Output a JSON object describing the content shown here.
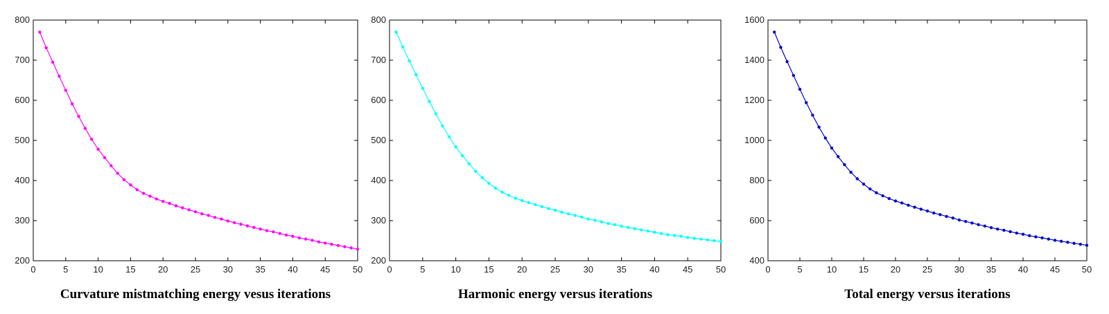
{
  "chart_data": [
    {
      "type": "line",
      "title": "Curvature mistmatching energy vesus iterations",
      "color": "#ff00ff",
      "xlim": [
        0,
        50
      ],
      "ylim": [
        200,
        800
      ],
      "xticks": [
        0,
        5,
        10,
        15,
        20,
        25,
        30,
        35,
        40,
        45,
        50
      ],
      "yticks": [
        200,
        300,
        400,
        500,
        600,
        700,
        800
      ],
      "x": [
        1,
        2,
        3,
        4,
        5,
        6,
        7,
        8,
        9,
        10,
        11,
        12,
        13,
        14,
        15,
        16,
        17,
        18,
        19,
        20,
        21,
        22,
        23,
        24,
        25,
        26,
        27,
        28,
        29,
        30,
        31,
        32,
        33,
        34,
        35,
        36,
        37,
        38,
        39,
        40,
        41,
        42,
        43,
        44,
        45,
        46,
        47,
        48,
        49,
        50
      ],
      "y": [
        770,
        731,
        695,
        660,
        625,
        591,
        560,
        530,
        503,
        478,
        457,
        437,
        418,
        402,
        389,
        377,
        368,
        361,
        354,
        348,
        343,
        337,
        332,
        327,
        322,
        317,
        313,
        308,
        304,
        299,
        295,
        291,
        287,
        283,
        279,
        275,
        272,
        268,
        264,
        261,
        257,
        254,
        251,
        247,
        244,
        241,
        238,
        235,
        232,
        229
      ]
    },
    {
      "type": "line",
      "title": "Harmonic energy versus iterations",
      "color": "#00ffff",
      "xlim": [
        0,
        50
      ],
      "ylim": [
        200,
        800
      ],
      "xticks": [
        0,
        5,
        10,
        15,
        20,
        25,
        30,
        35,
        40,
        45,
        50
      ],
      "yticks": [
        200,
        300,
        400,
        500,
        600,
        700,
        800
      ],
      "x": [
        1,
        2,
        3,
        4,
        5,
        6,
        7,
        8,
        9,
        10,
        11,
        12,
        13,
        14,
        15,
        16,
        17,
        18,
        19,
        20,
        21,
        22,
        23,
        24,
        25,
        26,
        27,
        28,
        29,
        30,
        31,
        32,
        33,
        34,
        35,
        36,
        37,
        38,
        39,
        40,
        41,
        42,
        43,
        44,
        45,
        46,
        47,
        48,
        49,
        50
      ],
      "y": [
        770,
        733,
        698,
        664,
        630,
        597,
        566,
        536,
        509,
        484,
        462,
        442,
        423,
        407,
        393,
        381,
        371,
        363,
        356,
        350,
        345,
        340,
        335,
        330,
        326,
        321,
        317,
        313,
        309,
        304,
        301,
        297,
        293,
        290,
        286,
        283,
        280,
        277,
        274,
        271,
        268,
        265,
        263,
        261,
        258,
        256,
        254,
        252,
        250,
        248
      ]
    },
    {
      "type": "line",
      "title": "Total energy versus iterations",
      "color": "#0000cc",
      "xlim": [
        0,
        50
      ],
      "ylim": [
        400,
        1600
      ],
      "xticks": [
        0,
        5,
        10,
        15,
        20,
        25,
        30,
        35,
        40,
        45,
        50
      ],
      "yticks": [
        400,
        600,
        800,
        1000,
        1200,
        1400,
        1600
      ],
      "x": [
        1,
        2,
        3,
        4,
        5,
        6,
        7,
        8,
        9,
        10,
        11,
        12,
        13,
        14,
        15,
        16,
        17,
        18,
        19,
        20,
        21,
        22,
        23,
        24,
        25,
        26,
        27,
        28,
        29,
        30,
        31,
        32,
        33,
        34,
        35,
        36,
        37,
        38,
        39,
        40,
        41,
        42,
        43,
        44,
        45,
        46,
        47,
        48,
        49,
        50
      ],
      "y": [
        1540,
        1464,
        1393,
        1324,
        1255,
        1188,
        1126,
        1066,
        1012,
        962,
        919,
        879,
        841,
        809,
        782,
        758,
        739,
        724,
        710,
        698,
        688,
        677,
        667,
        657,
        648,
        638,
        630,
        621,
        613,
        603,
        596,
        588,
        580,
        573,
        565,
        558,
        552,
        545,
        538,
        532,
        525,
        519,
        514,
        508,
        502,
        497,
        492,
        487,
        482,
        477
      ]
    }
  ]
}
